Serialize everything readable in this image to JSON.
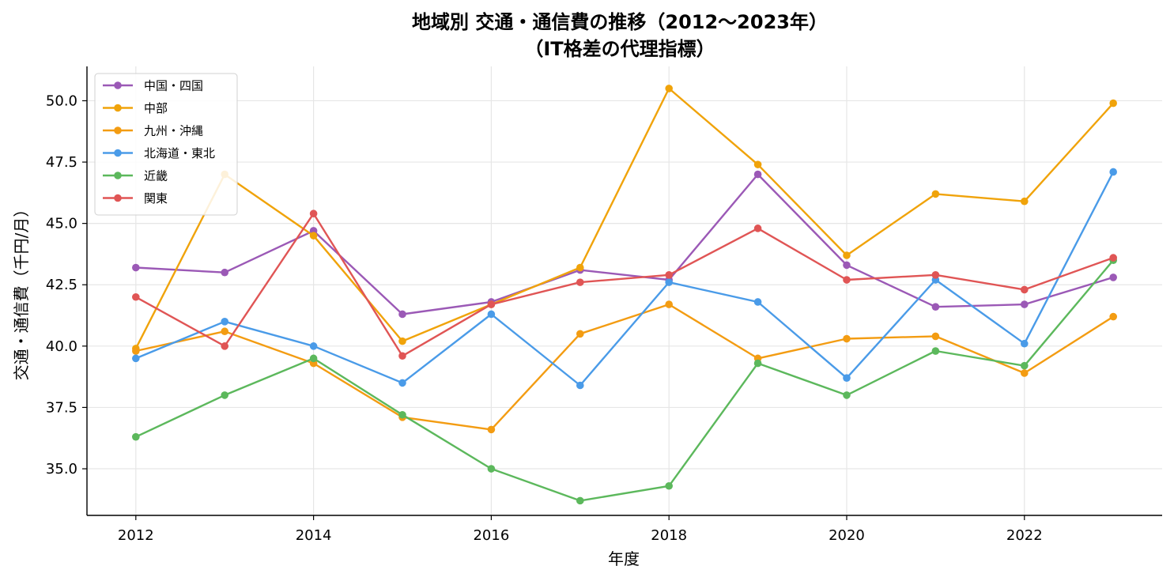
{
  "chart_data": {
    "type": "line",
    "title": "地域別 交通・通信費の推移（2012〜2023年）",
    "subtitle": "（IT格差の代理指標）",
    "xlabel": "年度",
    "ylabel": "交通・通信費（千円/月）",
    "x": [
      2012,
      2013,
      2014,
      2015,
      2016,
      2017,
      2018,
      2019,
      2020,
      2021,
      2022,
      2023
    ],
    "x_ticks": [
      "2012",
      "2014",
      "2016",
      "2018",
      "2020",
      "2022"
    ],
    "y_ticks": [
      "35.0",
      "37.5",
      "40.0",
      "42.5",
      "45.0",
      "47.5",
      "50.0"
    ],
    "xlim": [
      2011.45,
      2023.55
    ],
    "ylim": [
      33.1,
      51.4
    ],
    "grid": true,
    "legend_position": "top-left",
    "series": [
      {
        "name": "中国・四国",
        "color": "#9b59b6",
        "values": [
          43.2,
          43.0,
          44.7,
          41.3,
          41.8,
          43.1,
          42.7,
          47.0,
          43.3,
          41.6,
          41.7,
          42.8
        ]
      },
      {
        "name": "中部",
        "color": "#f0a30a",
        "values": [
          39.9,
          47.0,
          44.5,
          40.2,
          41.7,
          43.2,
          50.5,
          47.4,
          43.7,
          46.2,
          45.9,
          49.9
        ]
      },
      {
        "name": "九州・沖縄",
        "color": "#f39c12",
        "values": [
          39.8,
          40.6,
          39.3,
          37.1,
          36.6,
          40.5,
          41.7,
          39.5,
          40.3,
          40.4,
          38.9,
          41.2
        ]
      },
      {
        "name": "北海道・東北",
        "color": "#4a9be8",
        "values": [
          39.5,
          41.0,
          40.0,
          38.5,
          41.3,
          38.4,
          42.6,
          41.8,
          38.7,
          42.7,
          40.1,
          47.1
        ]
      },
      {
        "name": "近畿",
        "color": "#5cb85c",
        "values": [
          36.3,
          38.0,
          39.5,
          37.2,
          35.0,
          33.7,
          34.3,
          39.3,
          38.0,
          39.8,
          39.2,
          43.5
        ]
      },
      {
        "name": "関東",
        "color": "#e05555",
        "values": [
          42.0,
          40.0,
          45.4,
          39.6,
          41.7,
          42.6,
          42.9,
          44.8,
          42.7,
          42.9,
          42.3,
          43.6
        ]
      }
    ]
  }
}
